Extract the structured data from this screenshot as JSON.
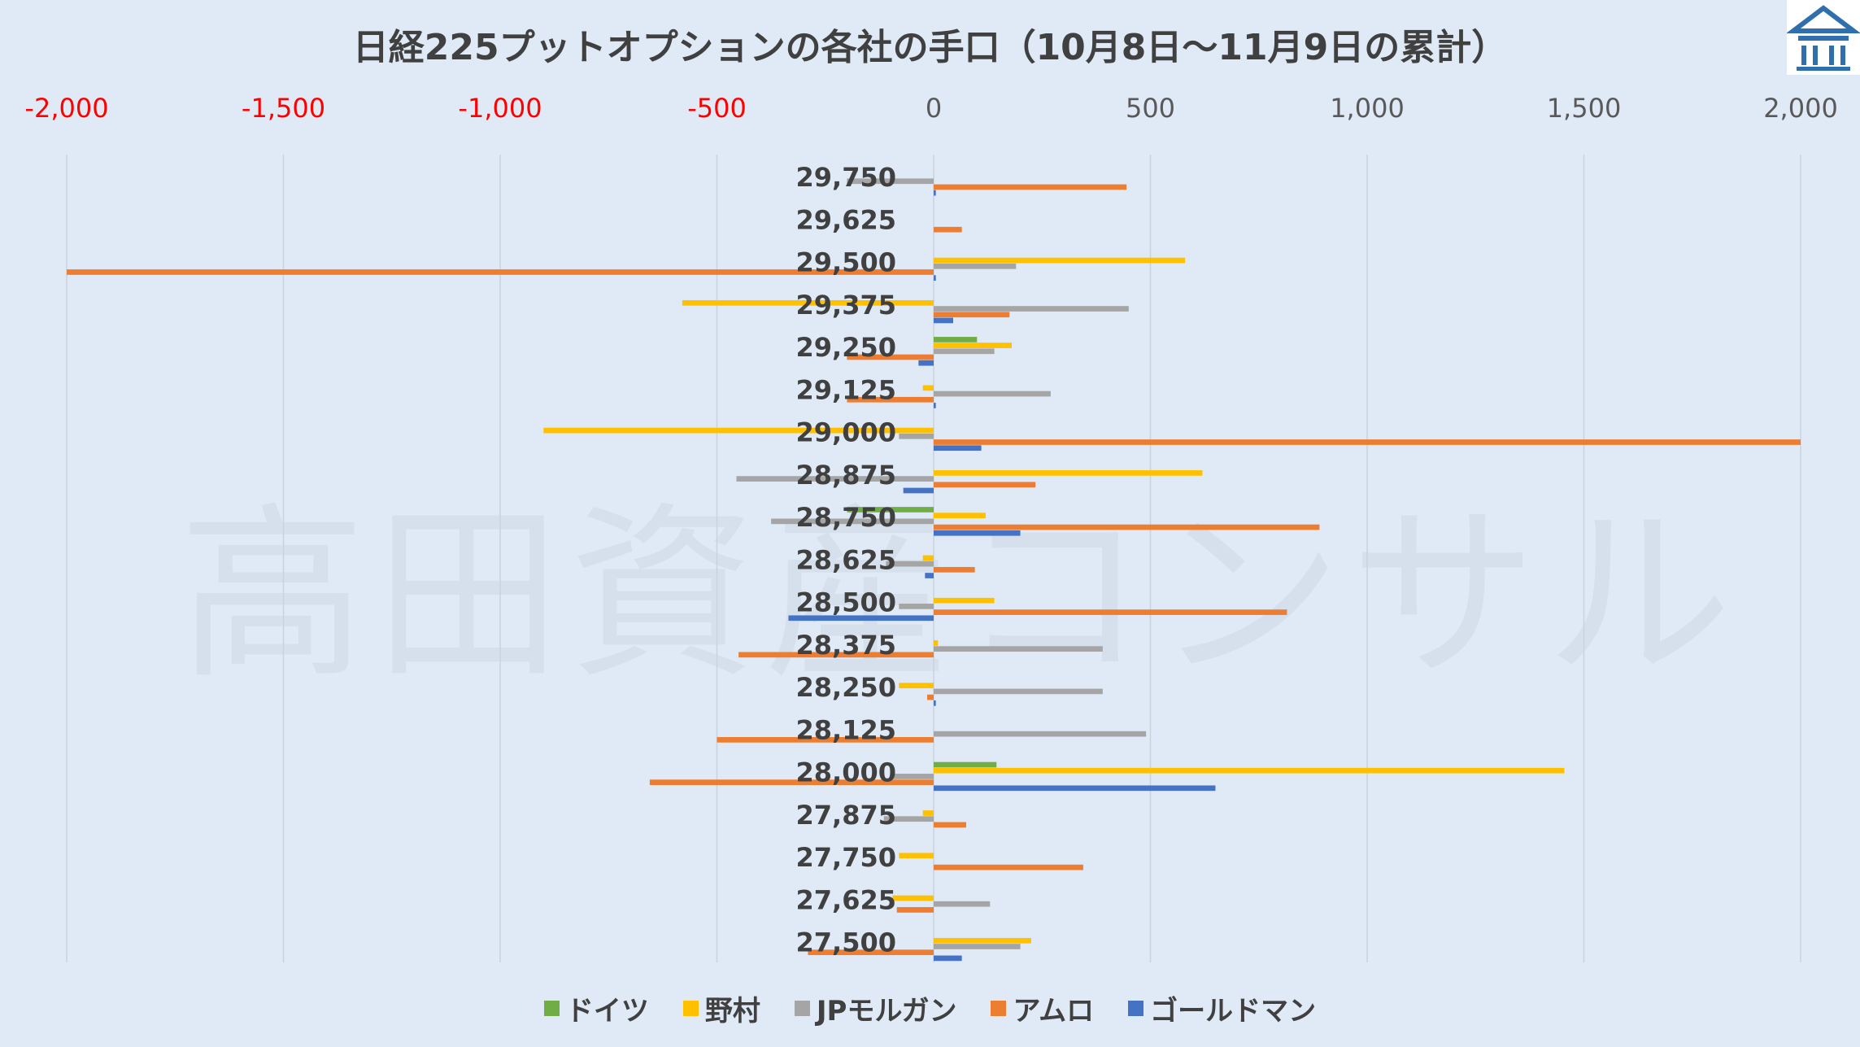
{
  "chart_data": {
    "type": "bar",
    "orientation": "horizontal",
    "title": "日経225プットオプションの各社の手口（10月8日～11月9日の累計）",
    "categories": [
      "29,750",
      "29,625",
      "29,500",
      "29,375",
      "29,250",
      "29,125",
      "29,000",
      "28,875",
      "28,750",
      "28,625",
      "28,500",
      "28,375",
      "28,250",
      "28,125",
      "28,000",
      "27,875",
      "27,750",
      "27,625",
      "27,500"
    ],
    "xlim": [
      -2000,
      2000
    ],
    "xticks": [
      {
        "v": -2000,
        "label": "-2,000"
      },
      {
        "v": -1500,
        "label": "-1,500"
      },
      {
        "v": -1000,
        "label": "-1,000"
      },
      {
        "v": -500,
        "label": "-500"
      },
      {
        "v": 0,
        "label": "0"
      },
      {
        "v": 500,
        "label": "500"
      },
      {
        "v": 1000,
        "label": "1,000"
      },
      {
        "v": 1500,
        "label": "1,500"
      },
      {
        "v": 2000,
        "label": "2,000"
      }
    ],
    "grid": true,
    "legend_position": "bottom",
    "series": [
      {
        "name": "ドイツ",
        "color": "#70ad47",
        "values": [
          0,
          0,
          0,
          0,
          100,
          0,
          0,
          0,
          -200,
          0,
          0,
          0,
          0,
          0,
          145,
          0,
          0,
          0,
          0
        ]
      },
      {
        "name": "野村",
        "color": "#ffc000",
        "values": [
          0,
          0,
          580,
          -580,
          180,
          -25,
          -900,
          620,
          120,
          -25,
          140,
          10,
          -80,
          0,
          1455,
          -25,
          -80,
          -95,
          225
        ]
      },
      {
        "name": "JPモルガン",
        "color": "#a5a5a5",
        "values": [
          -200,
          0,
          190,
          450,
          140,
          270,
          -80,
          -455,
          -375,
          -110,
          -80,
          390,
          390,
          490,
          -100,
          -115,
          0,
          130,
          200
        ]
      },
      {
        "name": "アムロ",
        "color": "#ed7d31",
        "values": [
          445,
          65,
          -2000,
          175,
          -200,
          -200,
          2000,
          235,
          890,
          95,
          815,
          -450,
          -15,
          -500,
          -655,
          75,
          345,
          -85,
          -290
        ]
      },
      {
        "name": "ゴールドマン",
        "color": "#4472c4",
        "values": [
          5,
          0,
          5,
          45,
          -35,
          5,
          110,
          -70,
          200,
          -20,
          -335,
          0,
          5,
          0,
          650,
          0,
          0,
          0,
          65
        ]
      }
    ]
  }
}
